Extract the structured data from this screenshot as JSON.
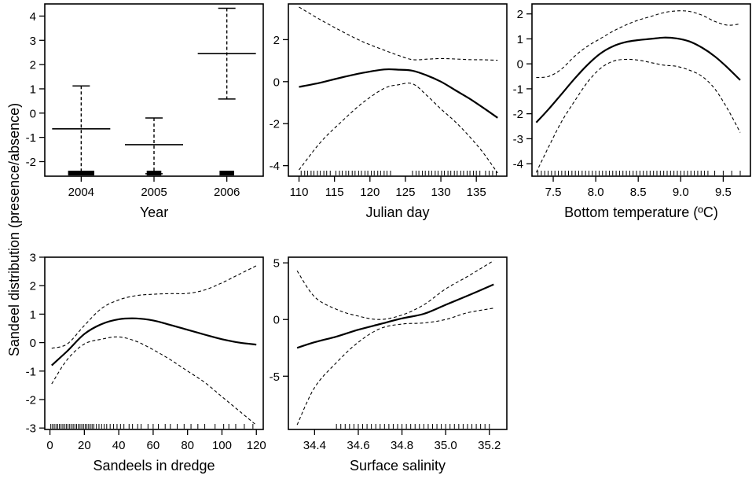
{
  "figure": {
    "ylabel": "Sandeel distribution (presence/absence)"
  },
  "chart_data": [
    {
      "id": "year",
      "type": "errorbar",
      "xlabel": "Year",
      "categories": [
        "2004",
        "2005",
        "2006"
      ],
      "estimate": [
        -0.65,
        -1.3,
        2.45
      ],
      "upper": [
        1.12,
        -0.2,
        4.32
      ],
      "lower": [
        -2.5,
        -2.5,
        0.58
      ],
      "xlim": [
        0.5,
        3.5
      ],
      "ylim": [
        -2.6,
        4.5
      ],
      "xticks": [
        {
          "v": 1,
          "label": "2004"
        },
        {
          "v": 2,
          "label": "2005"
        },
        {
          "v": 3,
          "label": "2006"
        }
      ],
      "yticks": [
        {
          "v": -2,
          "label": "-2"
        },
        {
          "v": -1,
          "label": "-1"
        },
        {
          "v": 0,
          "label": "0"
        },
        {
          "v": 1,
          "label": "1"
        },
        {
          "v": 2,
          "label": "2"
        },
        {
          "v": 3,
          "label": "3"
        },
        {
          "v": 4,
          "label": "4"
        }
      ],
      "rug_blocks": [
        {
          "center": 1,
          "halfwidth": 0.18
        },
        {
          "center": 2,
          "halfwidth": 0.1
        },
        {
          "center": 3,
          "halfwidth": 0.1
        }
      ]
    },
    {
      "id": "julian",
      "type": "line",
      "xlabel": "Julian day",
      "xlim": [
        108.5,
        139.3
      ],
      "ylim": [
        -4.5,
        3.7
      ],
      "xticks": [
        {
          "v": 110,
          "label": "110"
        },
        {
          "v": 115,
          "label": "115"
        },
        {
          "v": 120,
          "label": "120"
        },
        {
          "v": 125,
          "label": "125"
        },
        {
          "v": 130,
          "label": "130"
        },
        {
          "v": 135,
          "label": "135"
        }
      ],
      "yticks": [
        {
          "v": -4,
          "label": "-4"
        },
        {
          "v": -2,
          "label": "-2"
        },
        {
          "v": 0,
          "label": "0"
        },
        {
          "v": 2,
          "label": "2"
        }
      ],
      "x": [
        110,
        113,
        116,
        119,
        122,
        124,
        126,
        128,
        130,
        132,
        134,
        136,
        138
      ],
      "fit": [
        -0.25,
        -0.05,
        0.2,
        0.42,
        0.58,
        0.57,
        0.52,
        0.3,
        0.0,
        -0.4,
        -0.8,
        -1.25,
        -1.72
      ],
      "upper": [
        3.55,
        2.95,
        2.4,
        1.9,
        1.5,
        1.25,
        1.05,
        1.07,
        1.1,
        1.08,
        1.05,
        1.04,
        1.02
      ],
      "lower": [
        -4.2,
        -2.9,
        -1.9,
        -1.0,
        -0.32,
        -0.15,
        -0.1,
        -0.65,
        -1.3,
        -1.9,
        -2.6,
        -3.4,
        -4.35
      ],
      "rug": [
        110.3,
        110.8,
        111.2,
        111.7,
        112.1,
        112.6,
        113.0,
        113.5,
        113.9,
        114.4,
        115.2,
        115.7,
        116.1,
        116.6,
        117.0,
        117.5,
        117.9,
        118.4,
        118.8,
        119.3,
        119.7,
        120.2,
        120.6,
        121.1,
        121.5,
        122.0,
        122.4,
        122.9,
        126.0,
        126.5,
        126.9,
        127.4,
        127.8,
        128.3,
        128.7,
        129.2,
        129.6,
        130.1,
        130.5,
        131.0,
        131.4,
        131.9,
        132.3,
        132.8,
        133.2,
        133.7,
        134.1,
        134.6,
        135.0,
        135.5,
        136.3,
        136.8,
        137.3,
        137.8
      ]
    },
    {
      "id": "bottom-temperature",
      "type": "line",
      "xlabel": "Bottom temperature (ºC)",
      "xlim": [
        7.25,
        9.82
      ],
      "ylim": [
        -4.5,
        2.4
      ],
      "xticks": [
        {
          "v": 7.5,
          "label": "7.5"
        },
        {
          "v": 8.0,
          "label": "8.0"
        },
        {
          "v": 8.5,
          "label": "8.5"
        },
        {
          "v": 9.0,
          "label": "9.0"
        },
        {
          "v": 9.5,
          "label": "9.5"
        }
      ],
      "yticks": [
        {
          "v": -4,
          "label": "-4"
        },
        {
          "v": -3,
          "label": "-3"
        },
        {
          "v": -2,
          "label": "-2"
        },
        {
          "v": -1,
          "label": "-1"
        },
        {
          "v": 0,
          "label": "0"
        },
        {
          "v": 1,
          "label": "1"
        },
        {
          "v": 2,
          "label": "2"
        }
      ],
      "x": [
        7.3,
        7.45,
        7.6,
        7.75,
        7.9,
        8.05,
        8.2,
        8.35,
        8.5,
        8.65,
        8.8,
        8.95,
        9.1,
        9.25,
        9.4,
        9.55,
        9.7
      ],
      "fit": [
        -2.35,
        -1.8,
        -1.2,
        -0.6,
        -0.05,
        0.4,
        0.7,
        0.87,
        0.95,
        1.0,
        1.05,
        1.02,
        0.9,
        0.65,
        0.3,
        -0.15,
        -0.65
      ],
      "upper": [
        -0.55,
        -0.5,
        -0.2,
        0.3,
        0.7,
        1.0,
        1.3,
        1.55,
        1.75,
        1.9,
        2.05,
        2.12,
        2.1,
        1.95,
        1.7,
        1.55,
        1.6
      ],
      "lower": [
        -4.35,
        -3.3,
        -2.3,
        -1.5,
        -0.75,
        -0.2,
        0.1,
        0.18,
        0.15,
        0.05,
        -0.05,
        -0.1,
        -0.25,
        -0.5,
        -1.0,
        -1.8,
        -2.75
      ],
      "rug": [
        7.32,
        7.36,
        7.4,
        7.44,
        7.48,
        7.52,
        7.56,
        7.6,
        7.64,
        7.68,
        7.72,
        7.76,
        7.8,
        7.84,
        7.88,
        7.92,
        7.96,
        8.0,
        8.04,
        8.08,
        8.12,
        8.16,
        8.2,
        8.24,
        8.28,
        8.32,
        8.36,
        8.4,
        8.44,
        8.48,
        8.52,
        8.56,
        8.6,
        8.64,
        8.68,
        8.72,
        8.76,
        8.8,
        8.84,
        8.88,
        8.92,
        8.96,
        9.0,
        9.04,
        9.08,
        9.12,
        9.16,
        9.2,
        9.24,
        9.28,
        9.32,
        9.4,
        9.5,
        9.6,
        9.7
      ]
    },
    {
      "id": "sandeels-in-dredge",
      "type": "line",
      "xlabel": "Sandeels in dredge",
      "xlim": [
        -3,
        124
      ],
      "ylim": [
        -3.05,
        3.0
      ],
      "xticks": [
        {
          "v": 0,
          "label": "0"
        },
        {
          "v": 20,
          "label": "20"
        },
        {
          "v": 40,
          "label": "40"
        },
        {
          "v": 60,
          "label": "60"
        },
        {
          "v": 80,
          "label": "80"
        },
        {
          "v": 100,
          "label": "100"
        },
        {
          "v": 120,
          "label": "120"
        }
      ],
      "yticks": [
        {
          "v": -3,
          "label": "-3"
        },
        {
          "v": -2,
          "label": "-2"
        },
        {
          "v": -1,
          "label": "-1"
        },
        {
          "v": 0,
          "label": "0"
        },
        {
          "v": 1,
          "label": "1"
        },
        {
          "v": 2,
          "label": "2"
        },
        {
          "v": 3,
          "label": "3"
        }
      ],
      "x": [
        1,
        10,
        20,
        30,
        40,
        50,
        60,
        70,
        80,
        90,
        100,
        110,
        120
      ],
      "fit": [
        -0.8,
        -0.3,
        0.3,
        0.65,
        0.82,
        0.85,
        0.78,
        0.62,
        0.45,
        0.28,
        0.12,
        0.0,
        -0.07
      ],
      "upper": [
        -0.2,
        -0.05,
        0.6,
        1.2,
        1.5,
        1.65,
        1.7,
        1.72,
        1.73,
        1.85,
        2.1,
        2.4,
        2.7
      ],
      "lower": [
        -1.45,
        -0.6,
        -0.05,
        0.12,
        0.2,
        0.05,
        -0.25,
        -0.6,
        -1.0,
        -1.4,
        -1.9,
        -2.4,
        -2.9
      ],
      "rug": [
        0.5,
        1.5,
        2.5,
        3.5,
        4.5,
        5.5,
        6.5,
        7.5,
        8.5,
        9.5,
        10.5,
        11.5,
        12.5,
        13.5,
        14.5,
        15.5,
        16.5,
        17.5,
        18.5,
        19.5,
        20.5,
        21.5,
        22.5,
        23.5,
        24.5,
        25.5,
        27,
        28.5,
        30,
        31.5,
        33,
        35,
        37,
        39,
        41,
        43,
        46,
        48,
        51,
        53,
        57,
        60,
        63,
        67,
        70,
        74,
        78,
        82,
        86,
        90,
        96,
        101,
        104,
        108,
        113,
        118
      ]
    },
    {
      "id": "surface-salinity",
      "type": "line",
      "xlabel": "Surface salinity",
      "xlim": [
        34.28,
        35.28
      ],
      "ylim": [
        -9.7,
        5.5
      ],
      "xticks": [
        {
          "v": 34.4,
          "label": "34.4"
        },
        {
          "v": 34.6,
          "label": "34.6"
        },
        {
          "v": 34.8,
          "label": "34.8"
        },
        {
          "v": 35.0,
          "label": "35.0"
        },
        {
          "v": 35.2,
          "label": "35.2"
        }
      ],
      "yticks": [
        {
          "v": -5,
          "label": "-5"
        },
        {
          "v": 0,
          "label": "0"
        },
        {
          "v": 5,
          "label": "5"
        }
      ],
      "x": [
        34.32,
        34.4,
        34.5,
        34.6,
        34.7,
        34.8,
        34.9,
        35.0,
        35.1,
        35.22
      ],
      "fit": [
        -2.5,
        -2.0,
        -1.5,
        -0.9,
        -0.4,
        0.1,
        0.5,
        1.3,
        2.1,
        3.1
      ],
      "upper": [
        4.3,
        2.0,
        0.9,
        0.3,
        0.0,
        0.4,
        1.3,
        2.7,
        3.8,
        5.2
      ],
      "lower": [
        -9.3,
        -6.0,
        -3.8,
        -2.0,
        -0.8,
        -0.4,
        -0.3,
        0.0,
        0.6,
        1.0
      ],
      "rug": [
        34.5,
        34.52,
        34.54,
        34.56,
        34.58,
        34.6,
        34.62,
        34.64,
        34.66,
        34.68,
        34.7,
        34.72,
        34.74,
        34.76,
        34.78,
        34.8,
        34.82,
        34.84,
        34.86,
        34.88,
        34.9,
        34.92,
        34.94,
        34.96,
        34.98,
        35.0,
        35.02,
        35.04,
        35.06,
        35.08,
        35.1,
        35.12,
        35.14,
        35.16,
        35.18,
        35.2
      ]
    }
  ]
}
